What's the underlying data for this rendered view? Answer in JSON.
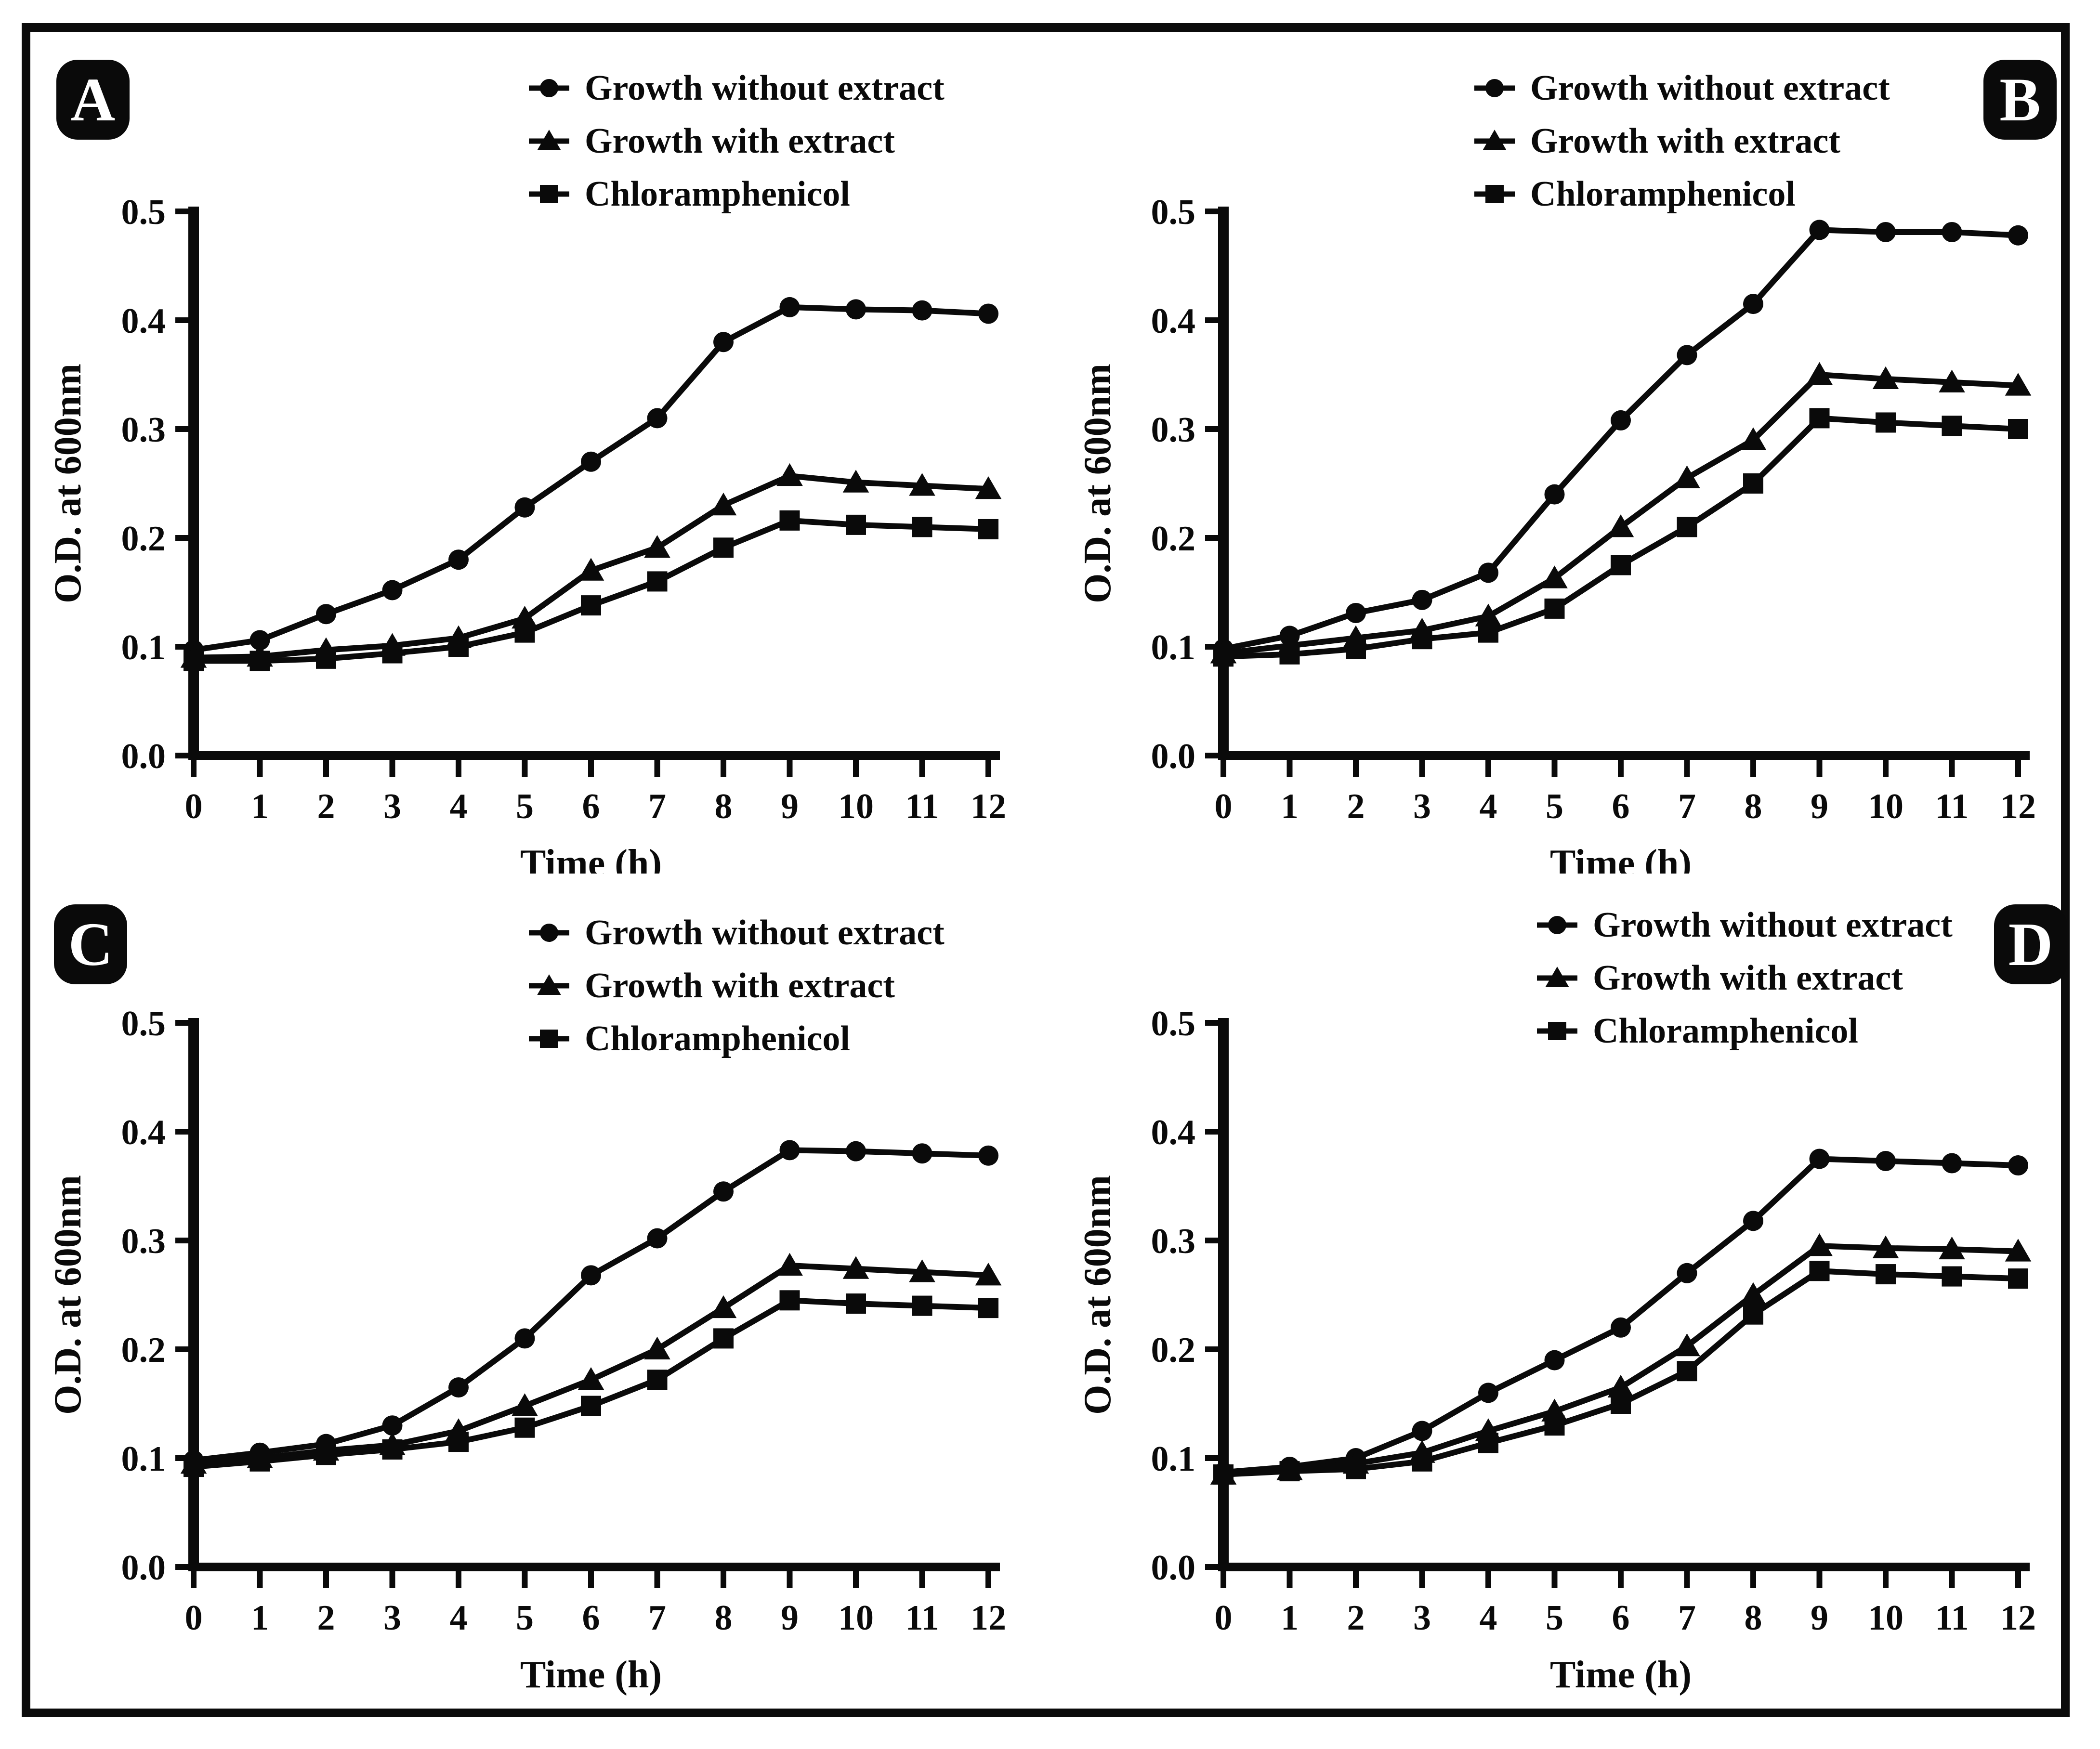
{
  "styles": {
    "ink": "#0a0a0a",
    "background": "#ffffff"
  },
  "chart_data": [
    {
      "panel": "A",
      "type": "line",
      "title": "",
      "xlabel": "Time (h)",
      "ylabel": "O.D. at 600nm",
      "x": [
        0,
        1,
        2,
        3,
        4,
        5,
        6,
        7,
        8,
        9,
        10,
        11,
        12
      ],
      "xlim": [
        0,
        12
      ],
      "ylim": [
        0.0,
        0.5
      ],
      "yticks": [
        0.0,
        0.1,
        0.2,
        0.3,
        0.4,
        0.5
      ],
      "grid": false,
      "legend_position": "top-center",
      "badge_side": "left",
      "series": [
        {
          "name": "Growth without extract",
          "marker": "circle",
          "color": "#0a0a0a",
          "values": [
            0.097,
            0.106,
            0.13,
            0.152,
            0.18,
            0.228,
            0.27,
            0.31,
            0.38,
            0.412,
            0.41,
            0.409,
            0.406
          ]
        },
        {
          "name": "Growth with extract",
          "marker": "triangle",
          "color": "#0a0a0a",
          "values": [
            0.09,
            0.091,
            0.097,
            0.101,
            0.108,
            0.126,
            0.17,
            0.191,
            0.23,
            0.257,
            0.251,
            0.248,
            0.245
          ]
        },
        {
          "name": "Chloramphenicol",
          "marker": "square",
          "color": "#0a0a0a",
          "values": [
            0.087,
            0.087,
            0.089,
            0.094,
            0.1,
            0.113,
            0.138,
            0.16,
            0.191,
            0.216,
            0.212,
            0.21,
            0.208
          ]
        }
      ]
    },
    {
      "panel": "B",
      "type": "line",
      "title": "",
      "xlabel": "Time (h)",
      "ylabel": "O.D. at 600nm",
      "x": [
        0,
        1,
        2,
        3,
        4,
        5,
        6,
        7,
        8,
        9,
        10,
        11,
        12
      ],
      "xlim": [
        0,
        12
      ],
      "ylim": [
        0.0,
        0.5
      ],
      "yticks": [
        0.0,
        0.1,
        0.2,
        0.3,
        0.4,
        0.5
      ],
      "grid": false,
      "legend_position": "top-center",
      "badge_side": "right",
      "series": [
        {
          "name": "Growth without extract",
          "marker": "circle",
          "color": "#0a0a0a",
          "values": [
            0.098,
            0.11,
            0.131,
            0.143,
            0.168,
            0.24,
            0.308,
            0.368,
            0.415,
            0.483,
            0.481,
            0.481,
            0.478
          ]
        },
        {
          "name": "Growth with extract",
          "marker": "triangle",
          "color": "#0a0a0a",
          "values": [
            0.094,
            0.101,
            0.108,
            0.115,
            0.128,
            0.163,
            0.21,
            0.255,
            0.29,
            0.35,
            0.346,
            0.343,
            0.34
          ]
        },
        {
          "name": "Chloramphenicol",
          "marker": "square",
          "color": "#0a0a0a",
          "values": [
            0.091,
            0.093,
            0.098,
            0.107,
            0.113,
            0.135,
            0.175,
            0.21,
            0.25,
            0.31,
            0.306,
            0.303,
            0.3
          ]
        }
      ]
    },
    {
      "panel": "C",
      "type": "line",
      "title": "",
      "xlabel": "Time (h)",
      "ylabel": "O.D. at 600nm",
      "x": [
        0,
        1,
        2,
        3,
        4,
        5,
        6,
        7,
        8,
        9,
        10,
        11,
        12
      ],
      "xlim": [
        0,
        12
      ],
      "ylim": [
        0.0,
        0.5
      ],
      "yticks": [
        0.0,
        0.1,
        0.2,
        0.3,
        0.4,
        0.5
      ],
      "grid": false,
      "legend_position": "top-center",
      "badge_side": "left",
      "series": [
        {
          "name": "Growth without extract",
          "marker": "circle",
          "color": "#0a0a0a",
          "values": [
            0.098,
            0.105,
            0.113,
            0.13,
            0.165,
            0.21,
            0.268,
            0.302,
            0.345,
            0.383,
            0.382,
            0.38,
            0.378
          ]
        },
        {
          "name": "Growth with extract",
          "marker": "triangle",
          "color": "#0a0a0a",
          "values": [
            0.095,
            0.1,
            0.107,
            0.112,
            0.125,
            0.148,
            0.172,
            0.2,
            0.238,
            0.277,
            0.274,
            0.271,
            0.268
          ]
        },
        {
          "name": "Chloramphenicol",
          "marker": "square",
          "color": "#0a0a0a",
          "values": [
            0.092,
            0.097,
            0.103,
            0.108,
            0.115,
            0.128,
            0.148,
            0.172,
            0.21,
            0.245,
            0.242,
            0.24,
            0.238
          ]
        }
      ]
    },
    {
      "panel": "D",
      "type": "line",
      "title": "",
      "xlabel": "Time (h)",
      "ylabel": "O.D. at 600nm",
      "x": [
        0,
        1,
        2,
        3,
        4,
        5,
        6,
        7,
        8,
        9,
        10,
        11,
        12
      ],
      "xlim": [
        0,
        12
      ],
      "ylim": [
        0.0,
        0.5
      ],
      "yticks": [
        0.0,
        0.1,
        0.2,
        0.3,
        0.4,
        0.5
      ],
      "grid": false,
      "legend_position": "top-center",
      "badge_side": "right",
      "series": [
        {
          "name": "Growth without extract",
          "marker": "circle",
          "color": "#0a0a0a",
          "values": [
            0.087,
            0.092,
            0.1,
            0.125,
            0.16,
            0.19,
            0.22,
            0.27,
            0.318,
            0.375,
            0.373,
            0.371,
            0.369
          ]
        },
        {
          "name": "Growth with extract",
          "marker": "triangle",
          "color": "#0a0a0a",
          "values": [
            0.085,
            0.089,
            0.095,
            0.105,
            0.125,
            0.143,
            0.165,
            0.203,
            0.25,
            0.295,
            0.293,
            0.292,
            0.29
          ]
        },
        {
          "name": "Chloramphenicol",
          "marker": "square",
          "color": "#0a0a0a",
          "values": [
            0.085,
            0.088,
            0.09,
            0.097,
            0.114,
            0.13,
            0.15,
            0.18,
            0.232,
            0.272,
            0.269,
            0.267,
            0.265
          ]
        }
      ]
    }
  ]
}
